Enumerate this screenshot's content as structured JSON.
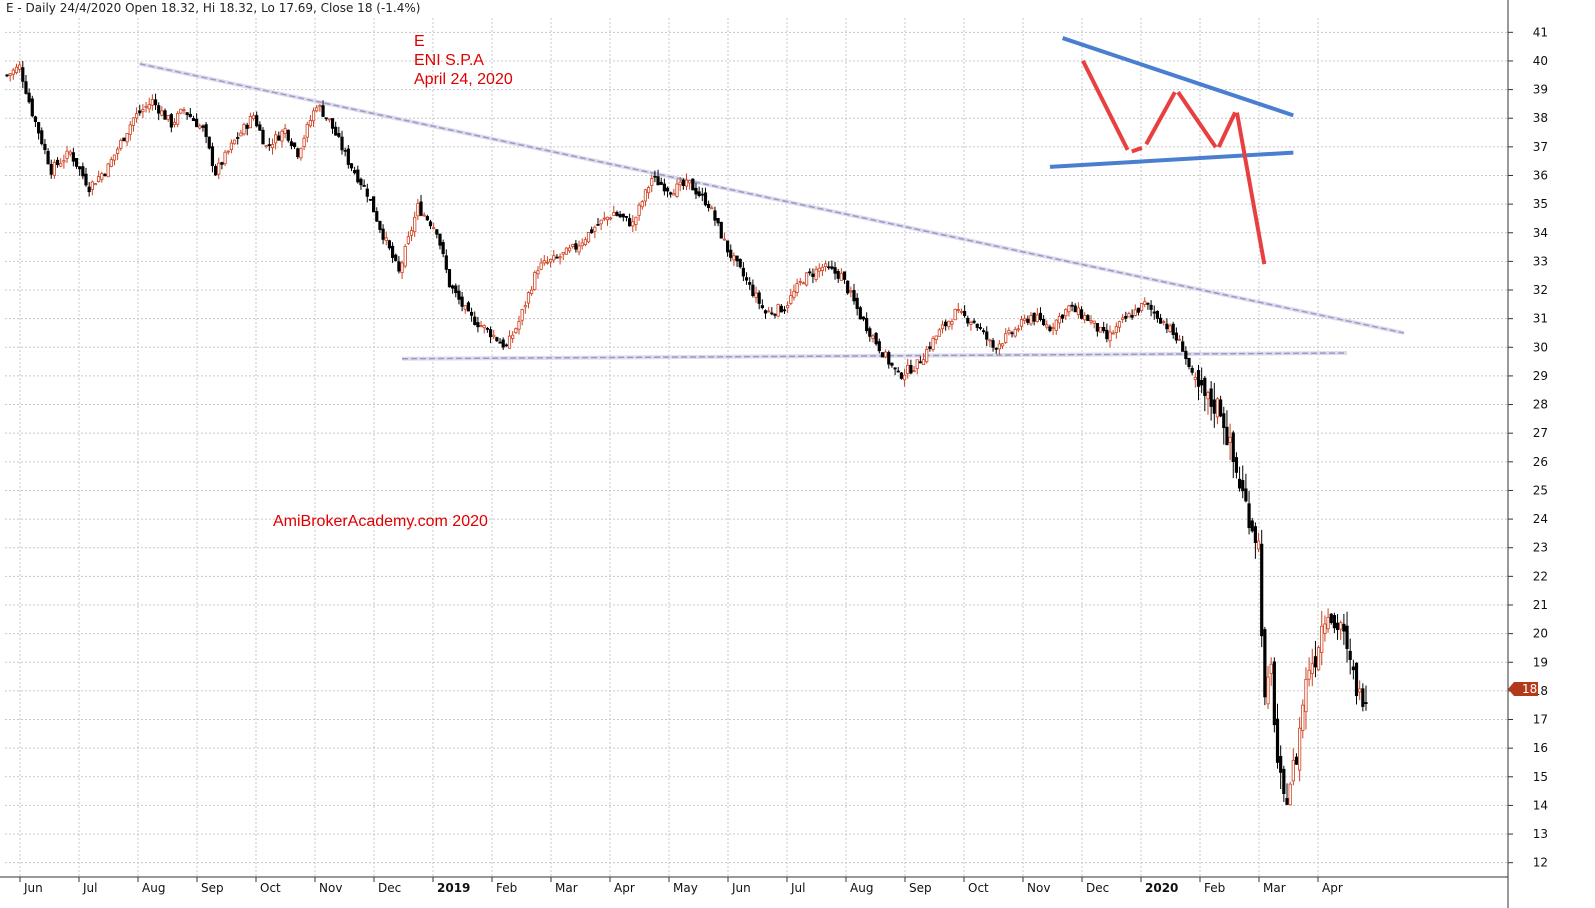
{
  "header": {
    "text": "E - Daily 24/4/2020 Open 18.32, Hi 18.32, Lo 17.69, Close 18 (-1.4%)"
  },
  "annotation": {
    "symbol": "E",
    "name": "ENI S.P.A",
    "date": "April 24, 2020"
  },
  "watermark": "AmiBrokerAcademy.com  2020",
  "last_price_badge": "18",
  "colors": {
    "up_candle": "#d04020",
    "down_candle": "#000000",
    "grid": "#c8c8c8",
    "trendline": "#9a9ac8",
    "pattern_blue": "#4a7fd0",
    "pattern_red": "#e84040",
    "badge": "#b23a1a"
  },
  "chart_data": {
    "type": "candlestick",
    "title": "E - Daily 24/4/2020 Open 18.32, Hi 18.32, Lo 17.69, Close 18 (-1.4%)",
    "ylim": [
      11.5,
      41.5
    ],
    "y_ticks": [
      12,
      13,
      14,
      15,
      16,
      17,
      18,
      19,
      20,
      21,
      22,
      23,
      24,
      25,
      26,
      27,
      28,
      29,
      30,
      31,
      32,
      33,
      34,
      35,
      36,
      37,
      38,
      39,
      40,
      41
    ],
    "x_ticks": [
      {
        "label": "Jun",
        "bold": false
      },
      {
        "label": "Jul",
        "bold": false
      },
      {
        "label": "Aug",
        "bold": false
      },
      {
        "label": "Sep",
        "bold": false
      },
      {
        "label": "Oct",
        "bold": false
      },
      {
        "label": "Nov",
        "bold": false
      },
      {
        "label": "Dec",
        "bold": false
      },
      {
        "label": "2019",
        "bold": true
      },
      {
        "label": "Feb",
        "bold": false
      },
      {
        "label": "Mar",
        "bold": false
      },
      {
        "label": "Apr",
        "bold": false
      },
      {
        "label": "May",
        "bold": false
      },
      {
        "label": "Jun",
        "bold": false
      },
      {
        "label": "Jul",
        "bold": false
      },
      {
        "label": "Aug",
        "bold": false
      },
      {
        "label": "Sep",
        "bold": false
      },
      {
        "label": "Oct",
        "bold": false
      },
      {
        "label": "Nov",
        "bold": false
      },
      {
        "label": "Dec",
        "bold": false
      },
      {
        "label": "2020",
        "bold": true
      },
      {
        "label": "Feb",
        "bold": false
      },
      {
        "label": "Mar",
        "bold": false
      },
      {
        "label": "Apr",
        "bold": false
      }
    ],
    "close_path": [
      [
        0,
        39.5
      ],
      [
        4,
        39.8
      ],
      [
        8,
        38.2
      ],
      [
        14,
        36.2
      ],
      [
        20,
        36.8
      ],
      [
        26,
        35.6
      ],
      [
        32,
        36.3
      ],
      [
        40,
        38.0
      ],
      [
        46,
        38.6
      ],
      [
        52,
        37.8
      ],
      [
        56,
        38.3
      ],
      [
        62,
        37.6
      ],
      [
        66,
        36.1
      ],
      [
        72,
        37.2
      ],
      [
        78,
        38.1
      ],
      [
        82,
        37.0
      ],
      [
        88,
        37.6
      ],
      [
        92,
        36.8
      ],
      [
        98,
        38.5
      ],
      [
        102,
        37.9
      ],
      [
        108,
        36.5
      ],
      [
        114,
        35.4
      ],
      [
        118,
        34.2
      ],
      [
        124,
        32.6
      ],
      [
        130,
        34.9
      ],
      [
        136,
        34.1
      ],
      [
        140,
        32.2
      ],
      [
        146,
        31.1
      ],
      [
        152,
        30.6
      ],
      [
        158,
        30.0
      ],
      [
        162,
        30.9
      ],
      [
        168,
        32.8
      ],
      [
        174,
        33.1
      ],
      [
        180,
        33.5
      ],
      [
        186,
        34.2
      ],
      [
        192,
        34.7
      ],
      [
        198,
        34.3
      ],
      [
        204,
        35.9
      ],
      [
        210,
        35.5
      ],
      [
        216,
        35.7
      ],
      [
        222,
        35.0
      ],
      [
        228,
        33.4
      ],
      [
        234,
        32.3
      ],
      [
        240,
        31.2
      ],
      [
        246,
        31.4
      ],
      [
        252,
        32.4
      ],
      [
        258,
        32.8
      ],
      [
        264,
        32.5
      ],
      [
        270,
        31.1
      ],
      [
        276,
        30.0
      ],
      [
        282,
        29.0
      ],
      [
        288,
        29.4
      ],
      [
        294,
        30.4
      ],
      [
        300,
        31.2
      ],
      [
        306,
        30.9
      ],
      [
        312,
        30.0
      ],
      [
        318,
        30.5
      ],
      [
        324,
        31.1
      ],
      [
        330,
        30.7
      ],
      [
        336,
        31.4
      ],
      [
        342,
        31.0
      ],
      [
        348,
        30.3
      ],
      [
        354,
        31.0
      ],
      [
        360,
        31.5
      ],
      [
        366,
        30.9
      ],
      [
        372,
        30.0
      ],
      [
        376,
        28.6
      ],
      [
        380,
        28.1
      ],
      [
        384,
        27.9
      ],
      [
        388,
        26.0
      ],
      [
        392,
        24.5
      ],
      [
        396,
        23.1
      ],
      [
        398,
        17.5
      ],
      [
        400,
        18.7
      ],
      [
        402,
        15.5
      ],
      [
        404,
        14.0
      ],
      [
        406,
        14.9
      ],
      [
        408,
        15.7
      ],
      [
        410,
        17.6
      ],
      [
        412,
        18.9
      ],
      [
        414,
        19.2
      ],
      [
        416,
        20.3
      ],
      [
        418,
        21.0
      ],
      [
        420,
        20.2
      ],
      [
        422,
        20.4
      ],
      [
        424,
        19.2
      ],
      [
        426,
        18.5
      ],
      [
        428,
        17.8
      ],
      [
        430,
        18.0
      ]
    ],
    "x_index_range": [
      0,
      430
    ],
    "trendlines": [
      {
        "type": "resistance",
        "from": [
          42,
          39.9
        ],
        "to": [
          442,
          30.5
        ]
      },
      {
        "type": "support",
        "from": [
          125,
          29.6
        ],
        "to": [
          424,
          29.8
        ]
      }
    ],
    "pattern_lines": [
      {
        "color": "blue",
        "from": [
          334,
          40.8
        ],
        "to": [
          407,
          38.1
        ]
      },
      {
        "color": "blue",
        "from": [
          330,
          36.3
        ],
        "to": [
          407,
          36.8
        ]
      },
      {
        "color": "red",
        "points": [
          [
            340,
            40.1
          ],
          [
            355,
            36.8
          ],
          [
            360,
            37.0
          ],
          [
            370,
            39.0
          ],
          [
            383,
            36.9
          ],
          [
            389,
            38.3
          ],
          [
            398,
            32.8
          ]
        ]
      }
    ],
    "last_close": 18
  }
}
